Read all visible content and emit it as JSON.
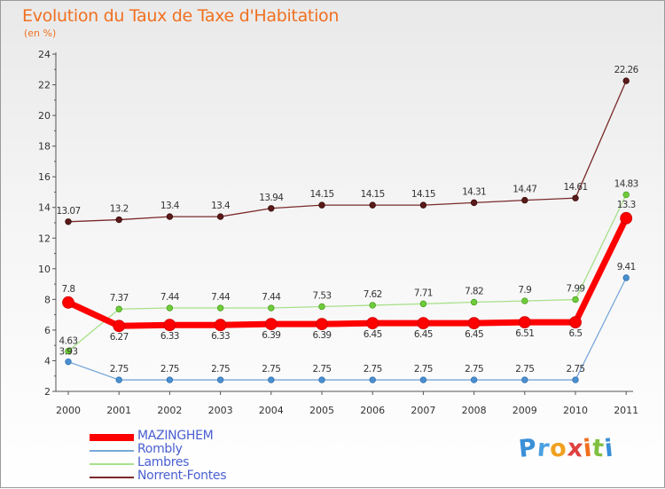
{
  "chart_data": {
    "type": "line",
    "title": "Evolution du Taux de Taxe d'Habitation",
    "subtitle": "(en %)",
    "xlabel": "",
    "ylabel": "",
    "x": [
      "2000",
      "2001",
      "2002",
      "2003",
      "2004",
      "2005",
      "2006",
      "2007",
      "2008",
      "2009",
      "2010",
      "2011"
    ],
    "ylim": [
      2,
      24
    ],
    "yticks": [
      2,
      4,
      6,
      8,
      10,
      12,
      14,
      16,
      18,
      20,
      22,
      24
    ],
    "grid": false,
    "legend_position": "bottom-left",
    "series": [
      {
        "name": "MAZINGHEM",
        "color": "#ff0000",
        "values": [
          7.8,
          6.27,
          6.33,
          6.33,
          6.39,
          6.39,
          6.45,
          6.45,
          6.45,
          6.51,
          6.51,
          13.3
        ],
        "labels": [
          "7.8",
          "6.27",
          "6.33",
          "6.33",
          "6.39",
          "6.39",
          "6.45",
          "6.45",
          "6.45",
          "6.51",
          "6.5",
          "13.3"
        ]
      },
      {
        "name": "Rombly",
        "color": "#6fa2d8",
        "values": [
          3.93,
          2.75,
          2.75,
          2.75,
          2.75,
          2.75,
          2.75,
          2.75,
          2.75,
          2.75,
          2.75,
          9.41
        ],
        "labels": [
          "3.93",
          "2.75",
          "2.75",
          "2.75",
          "2.75",
          "2.75",
          "2.75",
          "2.75",
          "2.75",
          "2.75",
          "2.75",
          "9.41"
        ]
      },
      {
        "name": "Lambres",
        "color": "#99dd77",
        "values": [
          4.63,
          7.37,
          7.44,
          7.44,
          7.44,
          7.53,
          7.62,
          7.71,
          7.82,
          7.9,
          7.99,
          14.83
        ],
        "labels": [
          "4.63",
          "7.37",
          "7.44",
          "7.44",
          "7.44",
          "7.53",
          "7.62",
          "7.71",
          "7.82",
          "7.9",
          "7.99",
          "14.83"
        ]
      },
      {
        "name": "Norrent-Fontes",
        "color": "#7a2a2a",
        "values": [
          13.07,
          13.2,
          13.4,
          13.4,
          13.94,
          14.15,
          14.15,
          14.15,
          14.31,
          14.47,
          14.61,
          22.26
        ],
        "labels": [
          "13.07",
          "13.2",
          "13.4",
          "13.4",
          "13.94",
          "14.15",
          "14.15",
          "14.15",
          "14.31",
          "14.47",
          "14.61",
          "22.26"
        ]
      }
    ]
  },
  "logo": {
    "letters": [
      "P",
      "r",
      "o",
      "x",
      "i",
      "t",
      "i"
    ],
    "colors": [
      "#3a8fd8",
      "#4aa0e0",
      "#f0a020",
      "#e04040",
      "#f07020",
      "#80c040",
      "#3a8fd8"
    ]
  }
}
